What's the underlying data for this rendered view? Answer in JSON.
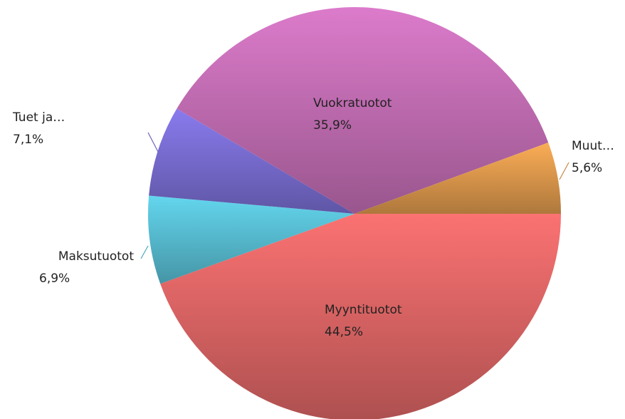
{
  "chart_data": {
    "type": "pie",
    "categories": [
      "Myyntituotot",
      "Maksutuotot",
      "Tuet ja…",
      "Vuokratuotot",
      "Muut…"
    ],
    "values": [
      44.5,
      6.9,
      7.1,
      35.9,
      5.6
    ],
    "value_labels": [
      "44,5%",
      "6,9%",
      "7,1%",
      "35,9%",
      "5,6%"
    ],
    "colors": [
      "#e86a6a",
      "#5cc6dc",
      "#7f72dc",
      "#cc72bc",
      "#e8a050"
    ]
  }
}
